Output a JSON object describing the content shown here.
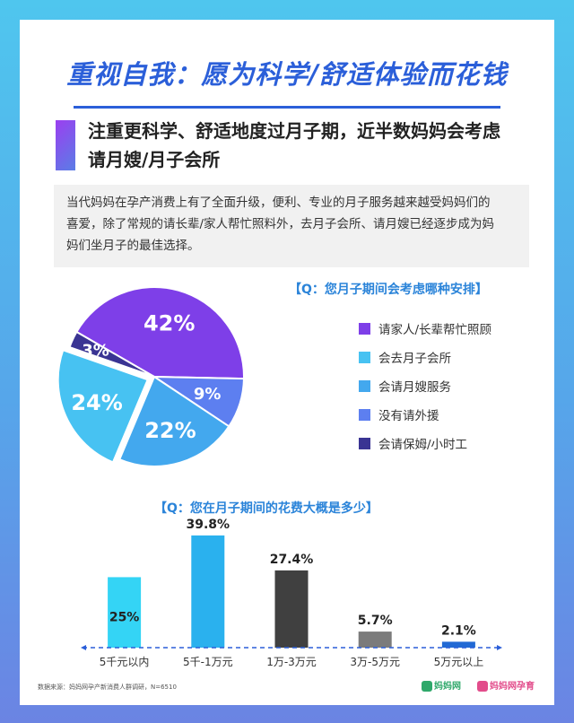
{
  "header": {
    "title": "重视自我：愿为科学/舒适体验而花钱",
    "section_heading_line1": "注重更科学、舒适地度过月子期，近半数妈妈会考虑",
    "section_heading_line2": "请月嫂/月子会所"
  },
  "intro": {
    "line1": "当代妈妈在孕产消费上有了全面升级，便利、专业的月子服务越来越受妈妈们的",
    "line2": "喜爱，除了常规的请长辈/家人帮忙照料外，去月子会所、请月嫂已经逐步成为妈",
    "line3": "妈们坐月子的最佳选择。"
  },
  "chart_data": [
    {
      "type": "pie",
      "title": "【Q：您月子期间会考虑哪种安排】",
      "slices": [
        {
          "label": "请家人/长辈帮忙照顾",
          "value": 42,
          "color": "#7e3fe8"
        },
        {
          "label": "会去月子会所",
          "value": 24,
          "color": "#47c2f2"
        },
        {
          "label": "会请月嫂服务",
          "value": 22,
          "color": "#43a8ee"
        },
        {
          "label": "没有请外援",
          "value": 9,
          "color": "#5d7ff0"
        },
        {
          "label": "会请保姆/小时工",
          "value": 3,
          "color": "#3a3493"
        }
      ],
      "display_order": [
        "请家人/长辈帮忙照顾",
        "没有请外援",
        "会请月嫂服务",
        "会去月子会所",
        "会请保姆/小时工"
      ],
      "legend": "right"
    },
    {
      "type": "bar",
      "title": "【Q：您在月子期间的花费大概是多少】",
      "categories": [
        "5千元以内",
        "5千-1万元",
        "1万-3万元",
        "3万-5万元",
        "5万元以上"
      ],
      "values": [
        25,
        39.8,
        27.4,
        5.7,
        2.1
      ],
      "value_labels": [
        "25%",
        "39.8%",
        "27.4%",
        "5.7%",
        "2.1%"
      ],
      "colors": [
        "#34d4f5",
        "#2ab1ee",
        "#404040",
        "#7b7b7b",
        "#2169d4"
      ],
      "ylim": [
        0,
        42
      ]
    }
  ],
  "footer": {
    "source": "数据来源：妈妈网孕产新消费人群调研，N=6510",
    "logo_left": "妈妈网",
    "logo_right": "妈妈网孕育"
  }
}
